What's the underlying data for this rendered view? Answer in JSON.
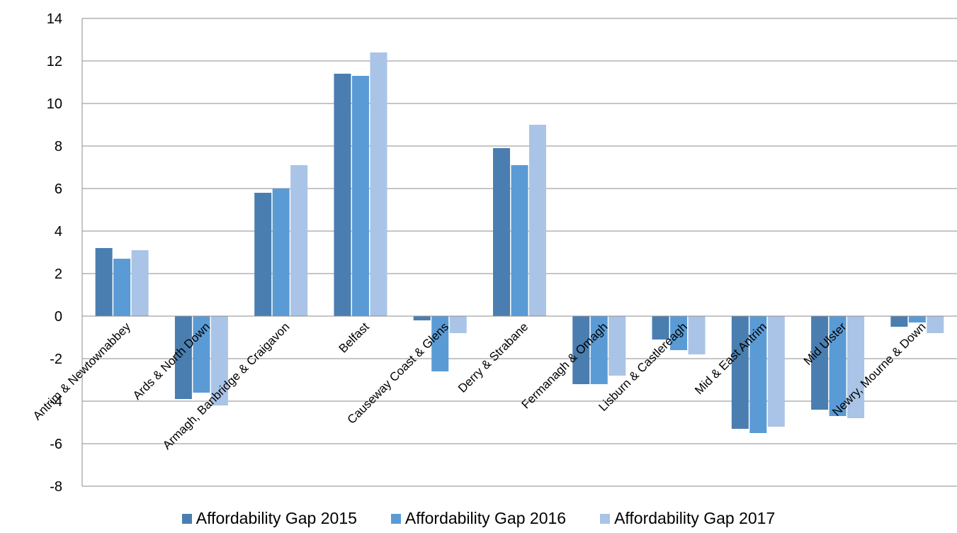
{
  "chart_data": {
    "type": "bar",
    "title": "",
    "xlabel": "",
    "ylabel": "",
    "ylim": [
      -8,
      14
    ],
    "yticks": [
      -8,
      -6,
      -4,
      -2,
      0,
      2,
      4,
      6,
      8,
      10,
      12,
      14
    ],
    "grid": true,
    "legend_position": "bottom",
    "categories": [
      "Antrim & Newtownabbey",
      "Ards & North Down",
      "Armagh, Banbridge & Craigavon",
      "Belfast",
      "Causeway Coast & Glens",
      "Derry & Strabane",
      "Fermanagh & Omagh",
      "Lisburn & Castlereagh",
      "Mid & East Antrim",
      "Mid Ulster",
      "Newry, Mourne & Down"
    ],
    "series": [
      {
        "name": "Affordability Gap 2015",
        "color": "#4a7eb0",
        "values": [
          3.2,
          -3.9,
          5.8,
          11.4,
          -0.2,
          7.9,
          -3.2,
          -1.1,
          -5.3,
          -4.4,
          -0.5
        ]
      },
      {
        "name": "Affordability Gap 2016",
        "color": "#5b9bd5",
        "values": [
          2.7,
          -3.6,
          6.0,
          11.3,
          -2.6,
          7.1,
          -3.2,
          -1.6,
          -5.5,
          -4.7,
          -0.3
        ]
      },
      {
        "name": "Affordability Gap 2017",
        "color": "#a9c4e6",
        "values": [
          3.1,
          -4.2,
          7.1,
          12.4,
          -0.8,
          9.0,
          -2.8,
          -1.8,
          -5.2,
          -4.8,
          -0.8
        ]
      }
    ]
  }
}
